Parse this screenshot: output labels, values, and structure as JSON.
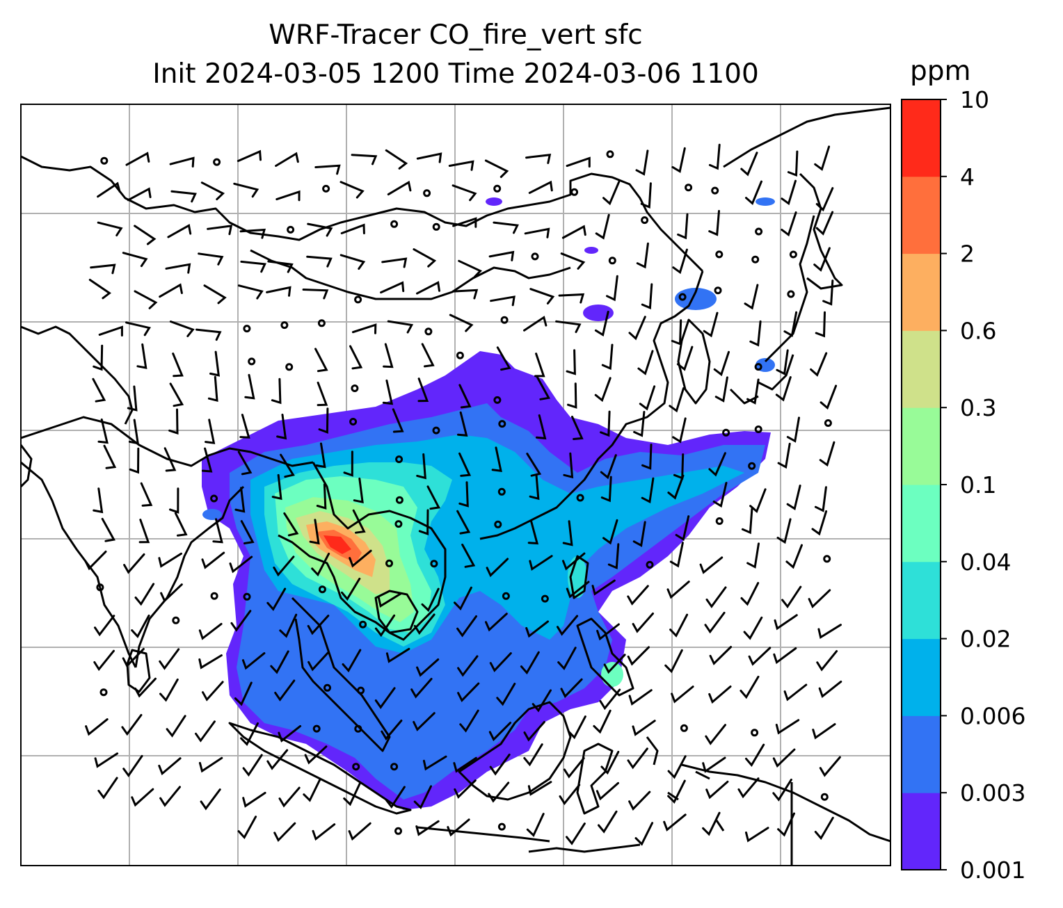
{
  "title": {
    "line1": "WRF-Tracer CO_fire_vert sfc",
    "line2": "Init 2024-03-05 1200 Time 2024-03-06 1100"
  },
  "colorbar": {
    "unit": "ppm",
    "levels": [
      "0.001",
      "0.003",
      "0.006",
      "0.02",
      "0.04",
      "0.1",
      "0.3",
      "0.6",
      "2",
      "4",
      "10"
    ],
    "colors": [
      "#6226fb",
      "#3273f4",
      "#00b1eb",
      "#2ee0d8",
      "#6cffc0",
      "#98fb98",
      "#cfe18a",
      "#fdaf60",
      "#ff6f3c",
      "#ff2a1a"
    ]
  },
  "map": {
    "frame_color": "#000000",
    "grid_color": "#b0b0b0",
    "coastline_color": "#000000",
    "wind_barb_color": "#000000"
  }
}
